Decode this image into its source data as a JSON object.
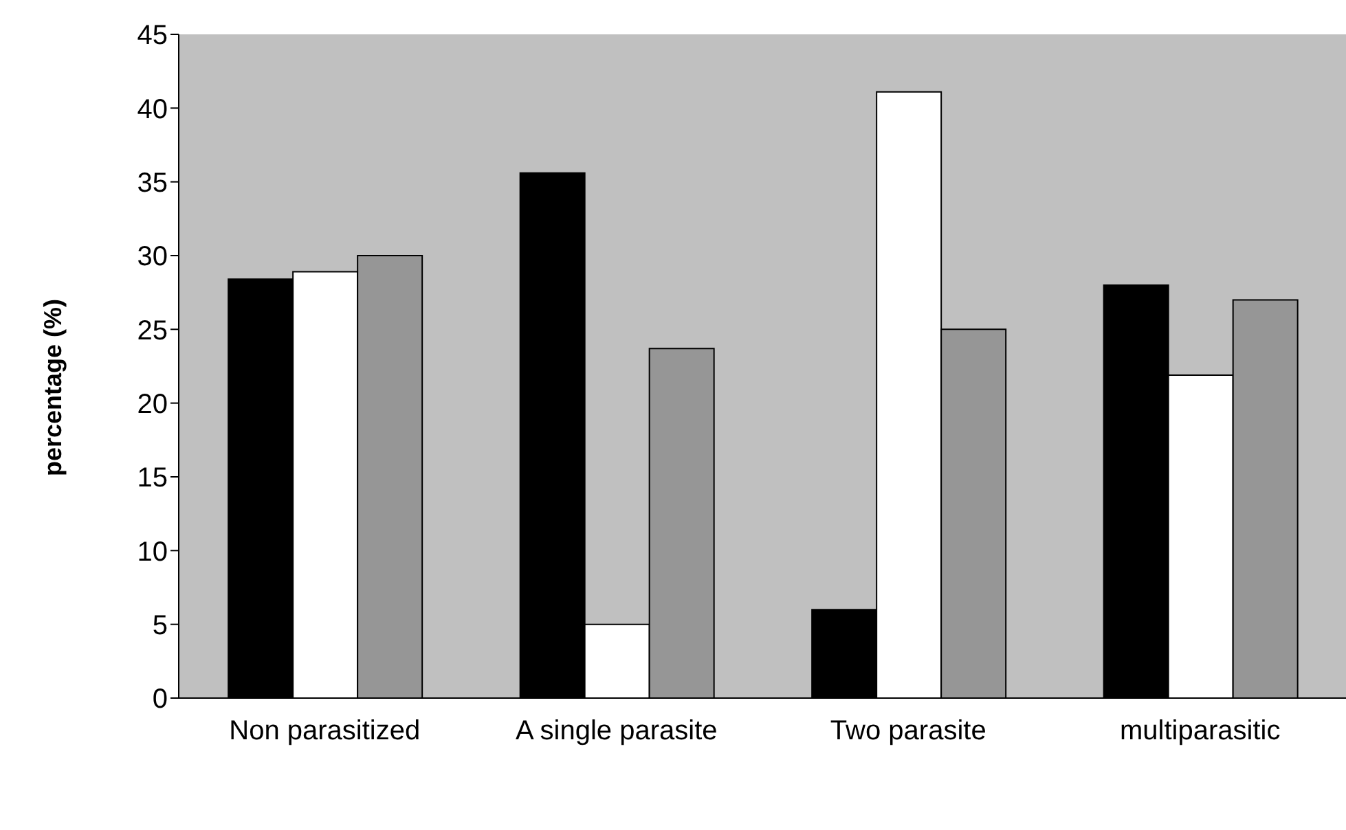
{
  "chart_data": {
    "type": "bar",
    "ylabel": "percentage (%)",
    "categories": [
      "Non parasitized",
      "A single parasite",
      "Two parasite",
      "multiparasitic"
    ],
    "series": [
      {
        "color": "#000000",
        "values": [
          28.4,
          35.6,
          6,
          28
        ]
      },
      {
        "color": "#ffffff",
        "values": [
          28.9,
          5,
          41.1,
          21.9
        ]
      },
      {
        "color": "#969696",
        "values": [
          30,
          23.7,
          25,
          27
        ]
      }
    ],
    "ylim": [
      0,
      45
    ],
    "yticks": [
      0,
      5,
      10,
      15,
      20,
      25,
      30,
      35,
      40,
      45
    ],
    "grid": false,
    "legend": false
  }
}
